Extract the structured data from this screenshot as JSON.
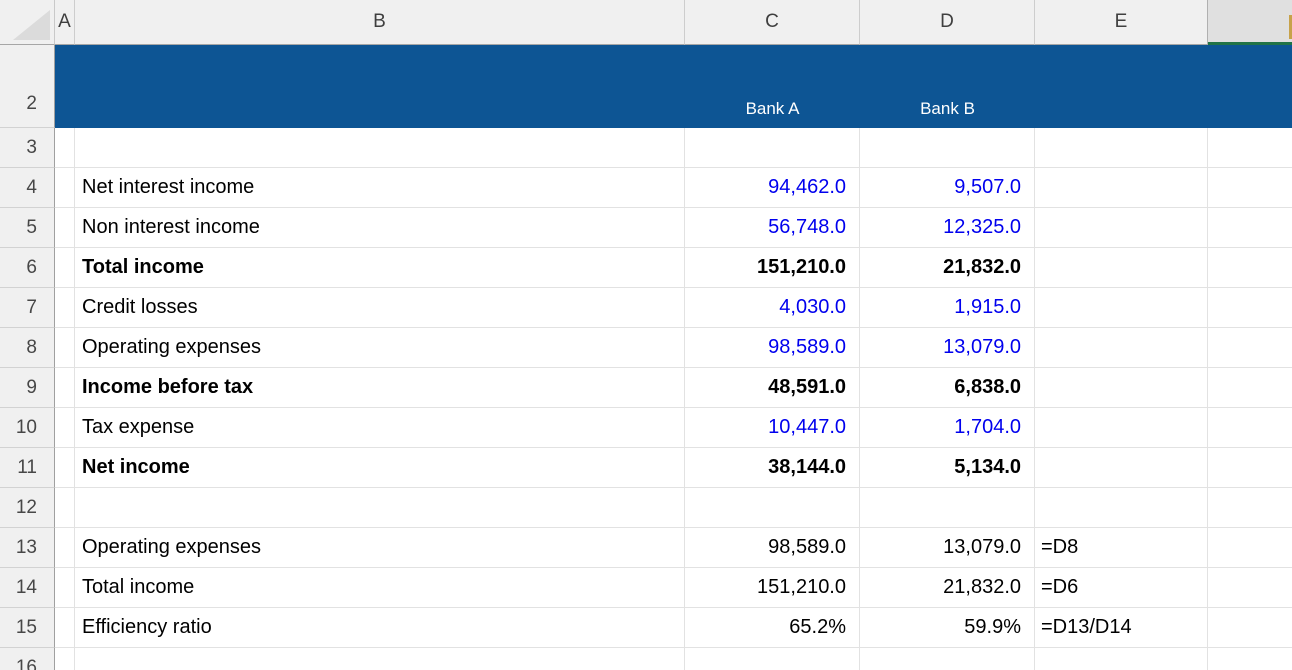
{
  "app": {
    "type": "spreadsheet-grid",
    "first_visible_row": "2"
  },
  "colors": {
    "band_blue": "#0D5594",
    "input_blue": "#0000EE",
    "selection_green": "#217346",
    "header_bg": "#F0F0F0",
    "selected_header_bg": "#E0E0E0",
    "gridline": "#E2E2E2",
    "partial_letter_gold": "#C7A24A"
  },
  "column_headers": {
    "a": "A",
    "b": "B",
    "c": "C",
    "d": "D",
    "e": "E"
  },
  "banner": {
    "row_num": "2",
    "bank_a": "Bank A",
    "bank_b": "Bank B"
  },
  "grid": {
    "rows": [
      {
        "num": "3",
        "b": "",
        "c": "",
        "d": "",
        "e": "",
        "bold": false,
        "color": "black"
      },
      {
        "num": "4",
        "b": "Net interest income",
        "c": "94,462.0",
        "d": "9,507.0",
        "e": "",
        "bold": false,
        "color": "blue"
      },
      {
        "num": "5",
        "b": "Non interest income",
        "c": "56,748.0",
        "d": "12,325.0",
        "e": "",
        "bold": false,
        "color": "blue"
      },
      {
        "num": "6",
        "b": "Total income",
        "c": "151,210.0",
        "d": "21,832.0",
        "e": "",
        "bold": true,
        "color": "black"
      },
      {
        "num": "7",
        "b": "Credit losses",
        "c": "4,030.0",
        "d": "1,915.0",
        "e": "",
        "bold": false,
        "color": "blue"
      },
      {
        "num": "8",
        "b": "Operating expenses",
        "c": "98,589.0",
        "d": "13,079.0",
        "e": "",
        "bold": false,
        "color": "blue"
      },
      {
        "num": "9",
        "b": "Income before tax",
        "c": "48,591.0",
        "d": "6,838.0",
        "e": "",
        "bold": true,
        "color": "black"
      },
      {
        "num": "10",
        "b": "Tax expense",
        "c": "10,447.0",
        "d": "1,704.0",
        "e": "",
        "bold": false,
        "color": "blue"
      },
      {
        "num": "11",
        "b": "Net income",
        "c": "38,144.0",
        "d": "5,134.0",
        "e": "",
        "bold": true,
        "color": "black"
      },
      {
        "num": "12",
        "b": "",
        "c": "",
        "d": "",
        "e": "",
        "bold": false,
        "color": "black"
      },
      {
        "num": "13",
        "b": "Operating expenses",
        "c": "98,589.0",
        "d": "13,079.0",
        "e": "=D8",
        "bold": false,
        "color": "black"
      },
      {
        "num": "14",
        "b": "Total income",
        "c": "151,210.0",
        "d": "21,832.0",
        "e": "=D6",
        "bold": false,
        "color": "black"
      },
      {
        "num": "15",
        "b": "Efficiency ratio",
        "c": "65.2%",
        "d": "59.9%",
        "e": "=D13/D14",
        "bold": false,
        "color": "black"
      },
      {
        "num": "16",
        "b": "",
        "c": "",
        "d": "",
        "e": "",
        "bold": false,
        "color": "black"
      }
    ]
  }
}
